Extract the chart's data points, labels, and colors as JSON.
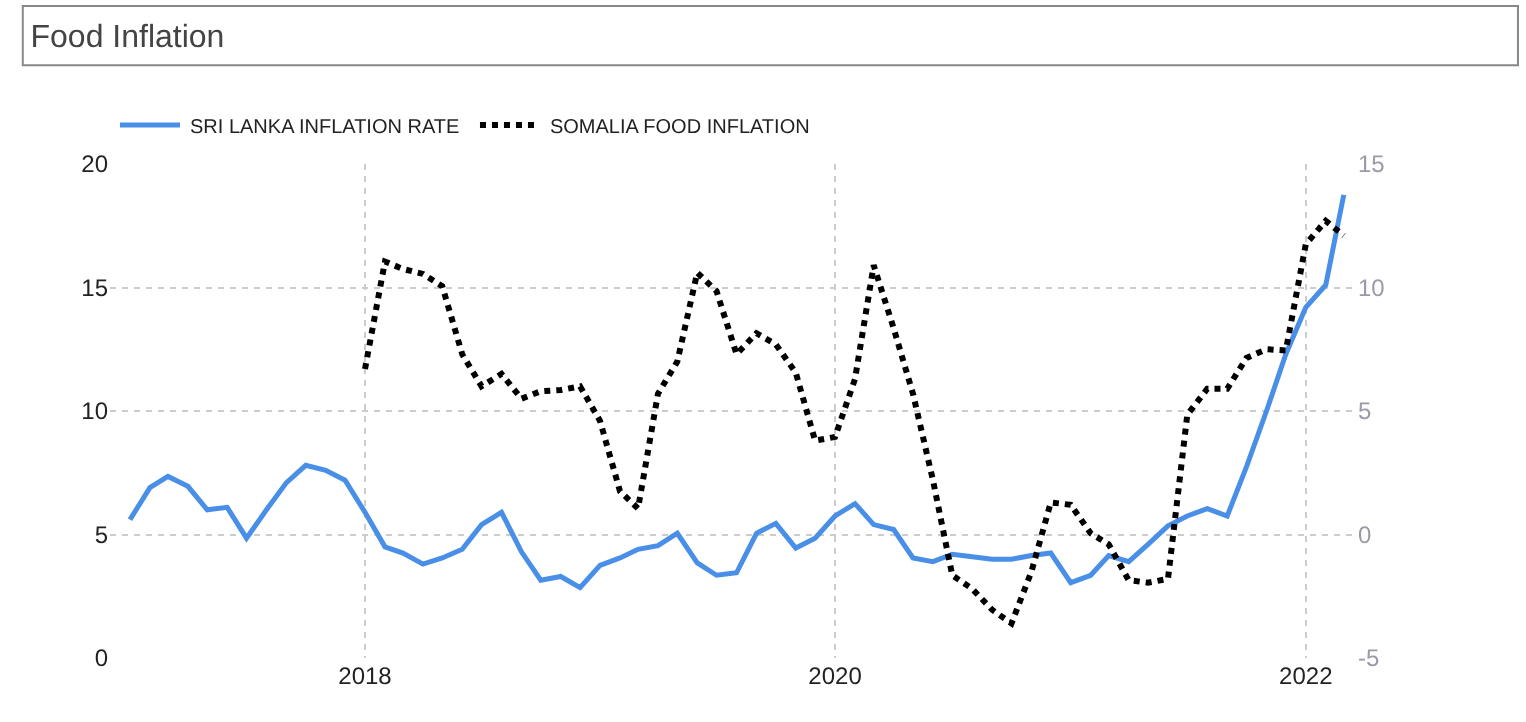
{
  "chart_data": {
    "type": "line",
    "title": "Food Inflation",
    "x": [
      "2017-01",
      "2017-02",
      "2017-03",
      "2017-04",
      "2017-05",
      "2017-06",
      "2017-07",
      "2017-08",
      "2017-09",
      "2017-10",
      "2017-11",
      "2017-12",
      "2018-01",
      "2018-02",
      "2018-03",
      "2018-04",
      "2018-05",
      "2018-06",
      "2018-07",
      "2018-08",
      "2018-09",
      "2018-10",
      "2018-11",
      "2018-12",
      "2019-01",
      "2019-02",
      "2019-03",
      "2019-04",
      "2019-05",
      "2019-06",
      "2019-07",
      "2019-08",
      "2019-09",
      "2019-10",
      "2019-11",
      "2019-12",
      "2020-01",
      "2020-02",
      "2020-03",
      "2020-04",
      "2020-05",
      "2020-06",
      "2020-07",
      "2020-08",
      "2020-09",
      "2020-10",
      "2020-11",
      "2020-12",
      "2021-01",
      "2021-02",
      "2021-03",
      "2021-04",
      "2021-05",
      "2021-06",
      "2021-07",
      "2021-08",
      "2021-09",
      "2021-10",
      "2021-11",
      "2021-12",
      "2022-01",
      "2022-02",
      "2022-03"
    ],
    "series": [
      {
        "name": "SRI LANKA INFLATION RATE",
        "color": "#4a8fe7",
        "line_style": "solid",
        "values": [
          5.6,
          6.9,
          7.35,
          6.95,
          6.0,
          6.1,
          4.85,
          6.0,
          7.1,
          7.8,
          7.6,
          7.2,
          5.9,
          4.5,
          4.25,
          3.8,
          4.05,
          4.4,
          5.4,
          5.9,
          4.3,
          3.15,
          3.3,
          2.85,
          3.75,
          4.05,
          4.4,
          4.55,
          5.05,
          3.85,
          3.35,
          3.45,
          5.05,
          5.45,
          4.45,
          4.85,
          5.75,
          6.25,
          5.4,
          5.2,
          4.05,
          3.9,
          4.2,
          4.1,
          4.0,
          4.0,
          4.15,
          4.25,
          3.05,
          3.35,
          4.15,
          3.9,
          4.6,
          5.35,
          5.75,
          6.05,
          5.75,
          7.75,
          10.0,
          12.3,
          14.2,
          15.1,
          18.75
        ]
      },
      {
        "name": "SOMALIA FOOD INFLATION",
        "color": "#000000",
        "line_style": "dotted",
        "axis": "y2",
        "values": [
          null,
          null,
          null,
          null,
          null,
          null,
          null,
          null,
          null,
          null,
          null,
          null,
          6.7,
          11.05,
          10.75,
          10.55,
          10.05,
          7.3,
          6.0,
          6.5,
          5.5,
          5.8,
          5.85,
          6.0,
          4.6,
          1.75,
          1.05,
          5.7,
          7.0,
          10.6,
          9.85,
          7.3,
          8.15,
          7.7,
          6.55,
          3.8,
          3.95,
          6.3,
          10.9,
          8.35,
          5.7,
          2.2,
          -1.65,
          -2.2,
          -3.05,
          -3.6,
          -1.5,
          1.3,
          1.2,
          0.05,
          -0.4,
          -1.85,
          -1.95,
          -1.8,
          4.85,
          5.9,
          5.9,
          7.15,
          7.5,
          7.45,
          11.75,
          12.7,
          12.1
        ]
      }
    ],
    "xlim": [
      "2016-12-01",
      "2022-03-20"
    ],
    "xticks": [
      {
        "value": "2018-01-01",
        "label": "2018"
      },
      {
        "value": "2020-01-01",
        "label": "2020"
      },
      {
        "value": "2022-01-01",
        "label": "2022"
      }
    ],
    "ylim": [
      0,
      20
    ],
    "yticks": [
      0,
      5,
      10,
      15,
      20
    ],
    "y2lim": [
      -5,
      15
    ],
    "y2ticks": [
      -5,
      0,
      5,
      10,
      15
    ],
    "grid": true,
    "legend": "top left"
  }
}
